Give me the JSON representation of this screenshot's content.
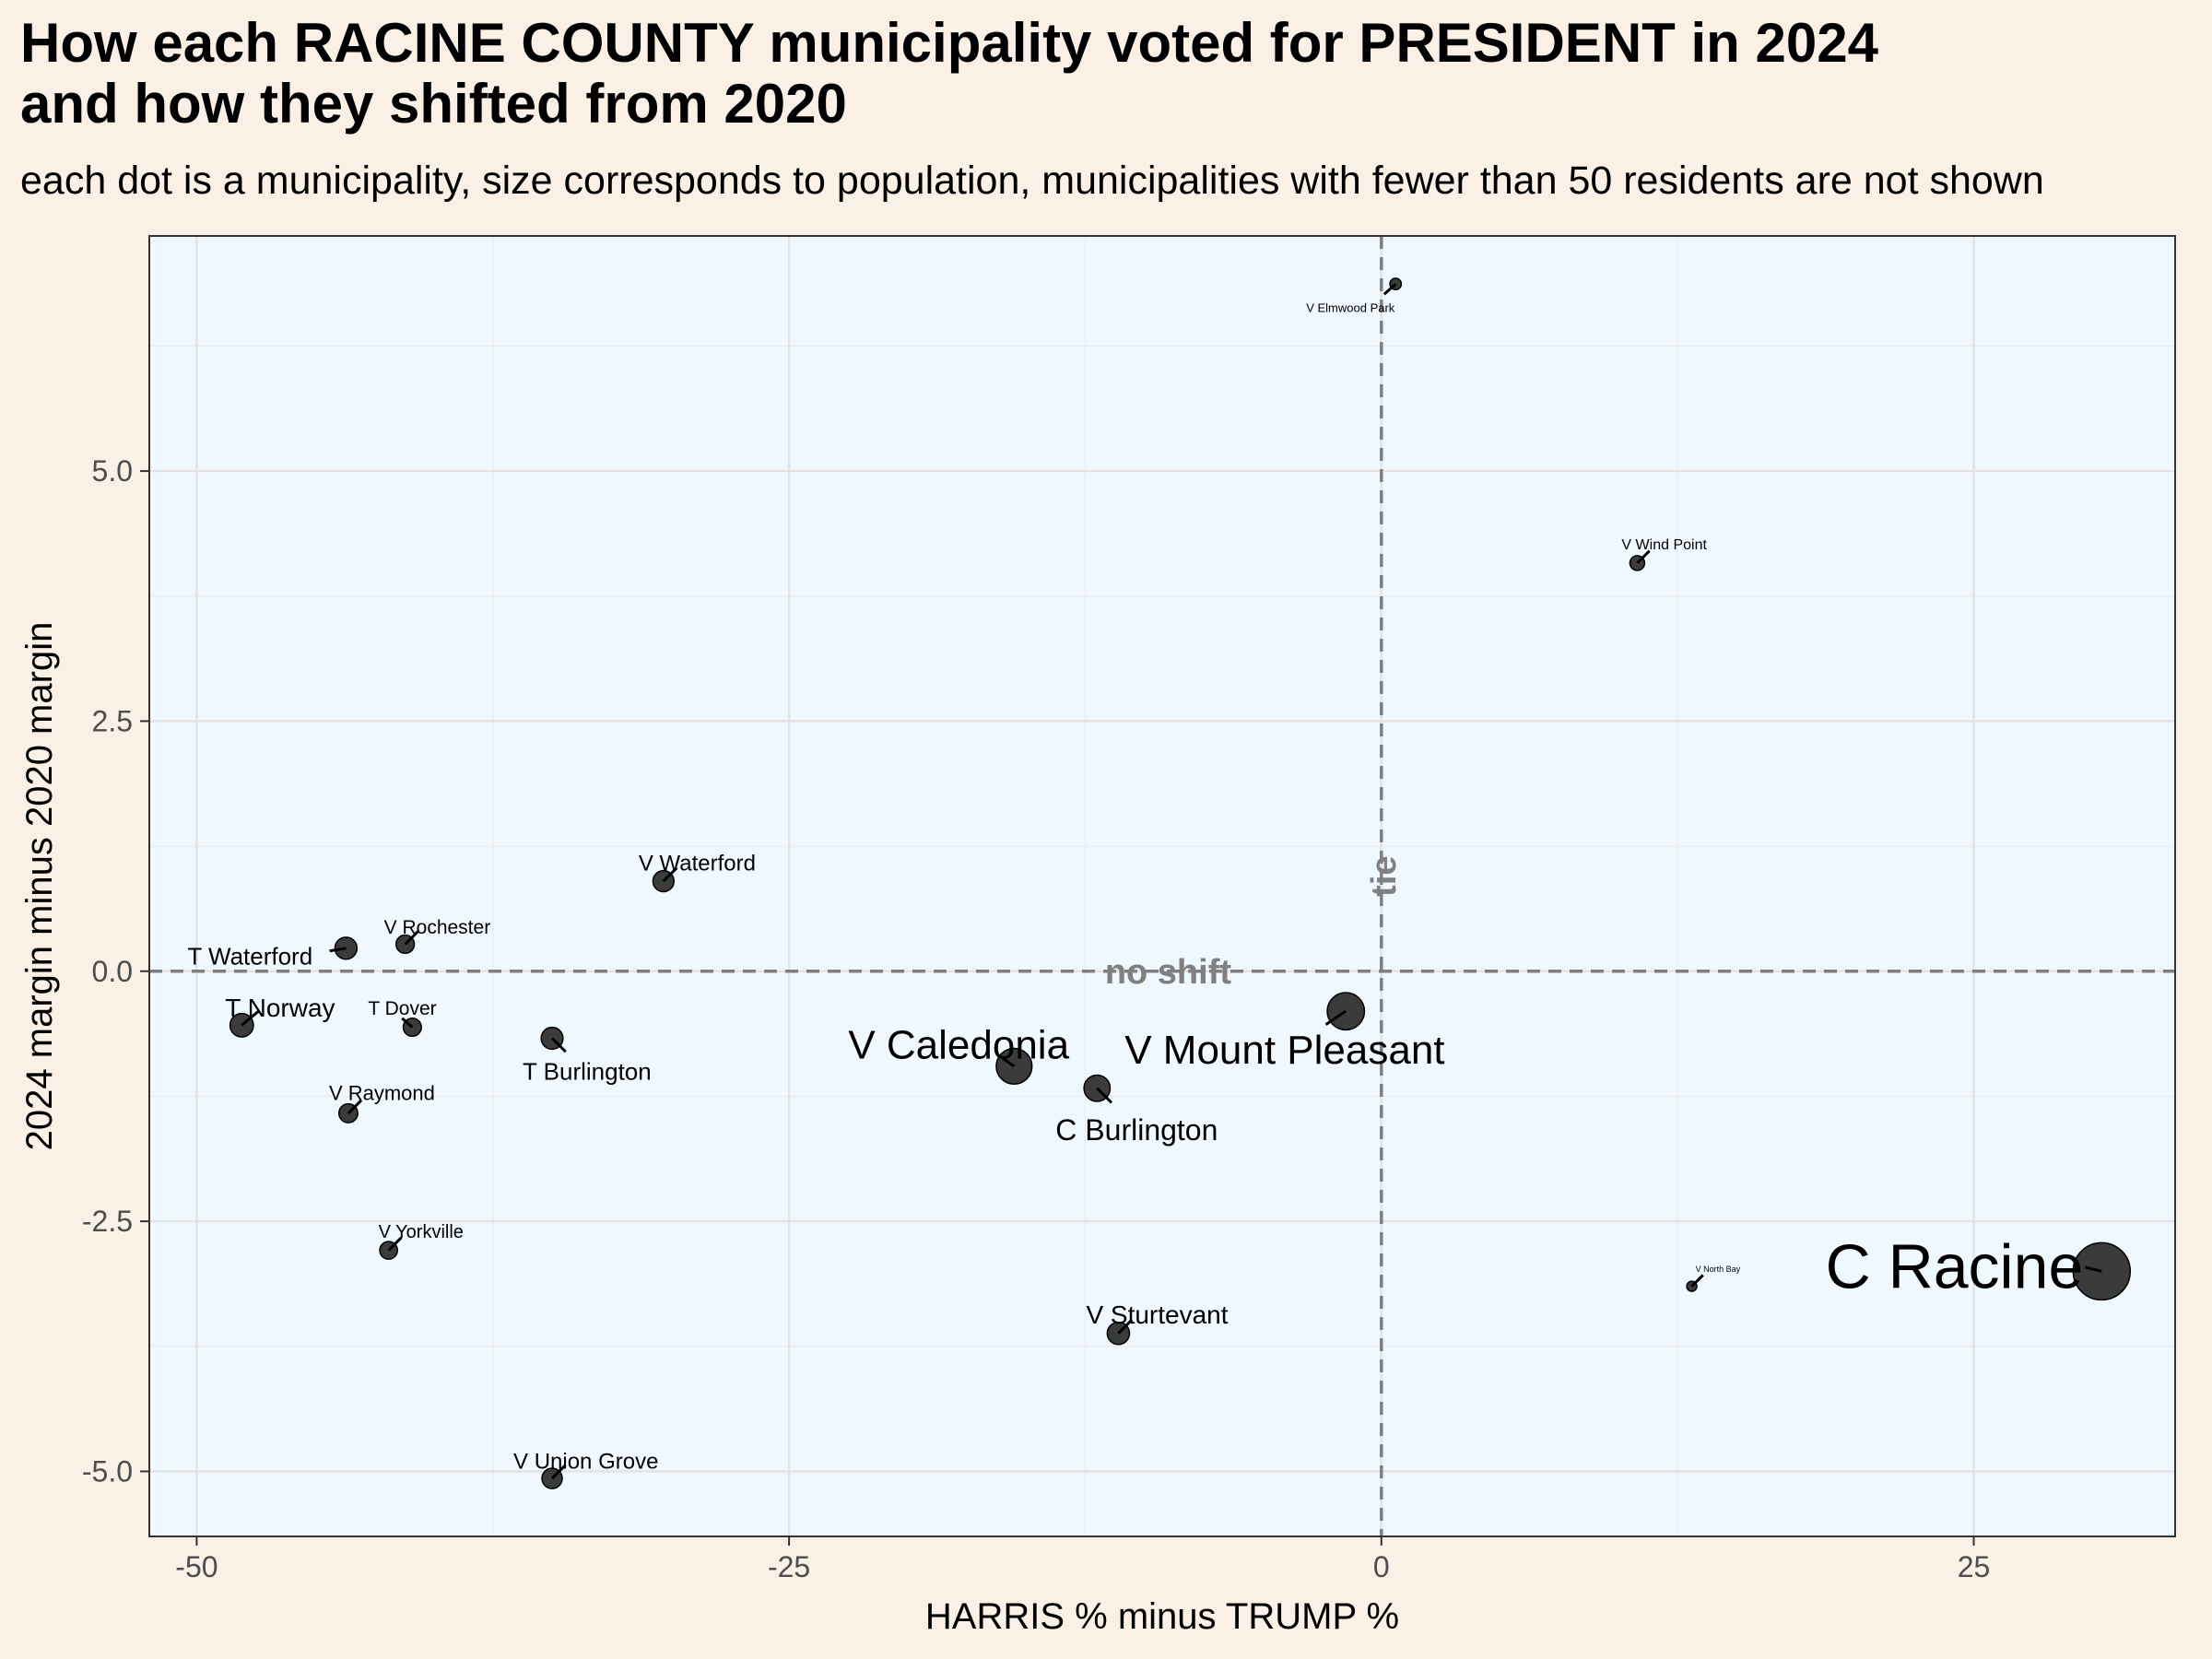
{
  "header": {
    "title": "How each RACINE COUNTY municipality voted for PRESIDENT in 2024\nand how they shifted from 2020",
    "subtitle": "each dot is a municipality, size corresponds to population, municipalities with fewer than 50 residents are not shown"
  },
  "chart_data": {
    "type": "scatter",
    "title": "How each RACINE COUNTY municipality voted for PRESIDENT in 2024 and how they shifted from 2020",
    "subtitle": "each dot is a municipality, size corresponds to population, municipalities with fewer than 50 residents are not shown",
    "xlabel": "HARRIS % minus TRUMP %",
    "ylabel": "2024 margin minus 2020 margin",
    "xlim": [
      -52,
      33.5
    ],
    "ylim": [
      -5.65,
      7.35
    ],
    "x_ticks": [
      -50,
      -25,
      0,
      25
    ],
    "x_tick_labels": [
      "-50",
      "-25",
      "0",
      "25"
    ],
    "y_ticks": [
      -5,
      -2.5,
      0,
      2.5,
      5
    ],
    "y_tick_labels": [
      "-5.0",
      "-2.5",
      "0.0",
      "2.5",
      "5.0"
    ],
    "grid": true,
    "reference_lines": [
      {
        "axis": "y",
        "value": 0,
        "label": "no shift"
      },
      {
        "axis": "x",
        "value": 0,
        "label": "tie"
      }
    ],
    "points": [
      {
        "name": "C Racine",
        "x": 30.4,
        "y": -3.0,
        "population": 77000
      },
      {
        "name": "V Mount Pleasant",
        "x": -1.5,
        "y": -0.4,
        "population": 27700
      },
      {
        "name": "V Caledonia",
        "x": -15.5,
        "y": -0.95,
        "population": 25000
      },
      {
        "name": "C Burlington",
        "x": -12.0,
        "y": -1.17,
        "population": 11000
      },
      {
        "name": "V Sturtevant",
        "x": -11.1,
        "y": -3.62,
        "population": 6900
      },
      {
        "name": "V Union Grove",
        "x": -35.0,
        "y": -5.07,
        "population": 5200
      },
      {
        "name": "T Norway",
        "x": -48.1,
        "y": -0.54,
        "population": 8000
      },
      {
        "name": "T Waterford",
        "x": -43.7,
        "y": 0.23,
        "population": 6700
      },
      {
        "name": "V Waterford",
        "x": -30.3,
        "y": 0.9,
        "population": 5800
      },
      {
        "name": "V Rochester",
        "x": -41.2,
        "y": 0.27,
        "population": 3700
      },
      {
        "name": "T Dover",
        "x": -40.9,
        "y": -0.56,
        "population": 3600
      },
      {
        "name": "T Burlington",
        "x": -35.0,
        "y": -0.67,
        "population": 6500
      },
      {
        "name": "V Raymond",
        "x": -43.6,
        "y": -1.42,
        "population": 4100
      },
      {
        "name": "V Yorkville",
        "x": -41.9,
        "y": -2.79,
        "population": 3300
      },
      {
        "name": "V Wind Point",
        "x": 10.8,
        "y": 4.08,
        "population": 1700
      },
      {
        "name": "V Elmwood Park",
        "x": 0.6,
        "y": 6.87,
        "population": 500
      },
      {
        "name": "V North Bay",
        "x": 13.1,
        "y": -3.15,
        "population": 230
      }
    ]
  }
}
